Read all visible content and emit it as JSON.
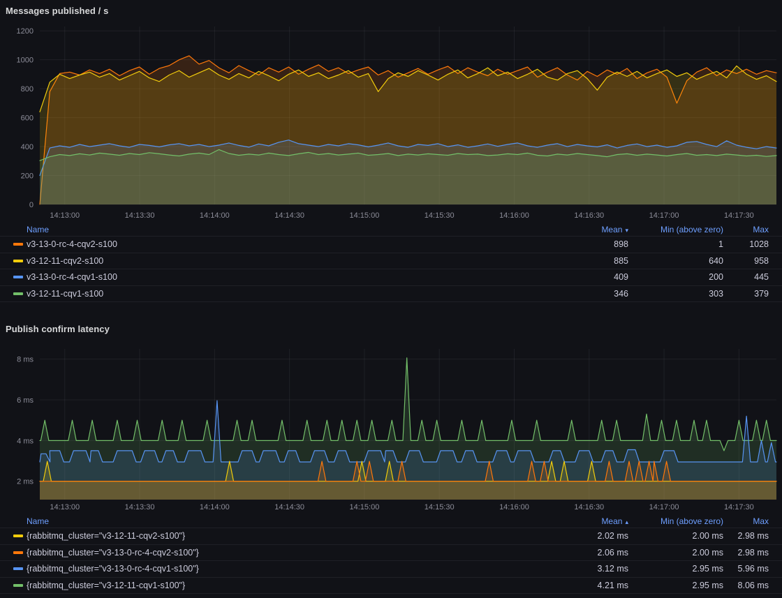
{
  "panels": [
    {
      "title": "Messages published / s",
      "legend": {
        "headers": {
          "name": "Name",
          "mean": "Mean",
          "min": "Min (above zero)",
          "max": "Max"
        },
        "sort_column": "Mean",
        "sort_direction": "descending",
        "sort_indicator": "▾",
        "rows": [
          {
            "name": "v3-13-0-rc-4-cqv2-s100",
            "color": "#FF780A",
            "mean": "898",
            "min": "1",
            "max": "1028"
          },
          {
            "name": "v3-12-11-cqv2-s100",
            "color": "#F2CC0C",
            "mean": "885",
            "min": "640",
            "max": "958"
          },
          {
            "name": "v3-13-0-rc-4-cqv1-s100",
            "color": "#5794F2",
            "mean": "409",
            "min": "200",
            "max": "445"
          },
          {
            "name": "v3-12-11-cqv1-s100",
            "color": "#73BF69",
            "mean": "346",
            "min": "303",
            "max": "379"
          }
        ]
      }
    },
    {
      "title": "Publish confirm latency",
      "legend": {
        "headers": {
          "name": "Name",
          "mean": "Mean",
          "min": "Min (above zero)",
          "max": "Max"
        },
        "sort_column": "Mean",
        "sort_direction": "ascending",
        "sort_indicator": "▴",
        "rows": [
          {
            "name": "{rabbitmq_cluster=\"v3-12-11-cqv2-s100\"}",
            "color": "#F2CC0C",
            "mean": "2.02 ms",
            "min": "2.00 ms",
            "max": "2.98 ms"
          },
          {
            "name": "{rabbitmq_cluster=\"v3-13-0-rc-4-cqv2-s100\"}",
            "color": "#FF780A",
            "mean": "2.06 ms",
            "min": "2.00 ms",
            "max": "2.98 ms"
          },
          {
            "name": "{rabbitmq_cluster=\"v3-13-0-rc-4-cqv1-s100\"}",
            "color": "#5794F2",
            "mean": "3.12 ms",
            "min": "2.95 ms",
            "max": "5.96 ms"
          },
          {
            "name": "{rabbitmq_cluster=\"v3-12-11-cqv1-s100\"}",
            "color": "#73BF69",
            "mean": "4.21 ms",
            "min": "2.95 ms",
            "max": "8.06 ms"
          }
        ]
      }
    }
  ],
  "chart_data": [
    {
      "type": "area-line",
      "title": "Messages published / s",
      "x_start": "14:12:50",
      "x_end": "14:17:45",
      "duration_s": 295,
      "grid": true,
      "legend_position": "bottom-table",
      "x_ticks": [
        {
          "t": 10,
          "label": "14:13:00"
        },
        {
          "t": 40,
          "label": "14:13:30"
        },
        {
          "t": 70,
          "label": "14:14:00"
        },
        {
          "t": 100,
          "label": "14:14:30"
        },
        {
          "t": 130,
          "label": "14:15:00"
        },
        {
          "t": 160,
          "label": "14:15:30"
        },
        {
          "t": 190,
          "label": "14:16:00"
        },
        {
          "t": 220,
          "label": "14:16:30"
        },
        {
          "t": 250,
          "label": "14:17:00"
        },
        {
          "t": 280,
          "label": "14:17:30"
        }
      ],
      "y_ticks": [
        {
          "v": 0,
          "label": "0"
        },
        {
          "v": 200,
          "label": "200"
        },
        {
          "v": 400,
          "label": "400"
        },
        {
          "v": 600,
          "label": "600"
        },
        {
          "v": 800,
          "label": "800"
        },
        {
          "v": 1000,
          "label": "1000"
        },
        {
          "v": 1200,
          "label": "1200"
        }
      ],
      "y_range": [
        0,
        1230
      ],
      "series": [
        {
          "name": "v3-13-0-rc-4-cqv2-s100",
          "color": "#FF780A",
          "stats": {
            "mean": 898,
            "min_above_zero": 1,
            "max": 1028
          },
          "values": [
            1,
            780,
            905,
            915,
            895,
            930,
            905,
            935,
            890,
            925,
            950,
            900,
            940,
            960,
            1000,
            1028,
            970,
            995,
            945,
            910,
            960,
            925,
            895,
            945,
            915,
            950,
            900,
            935,
            965,
            920,
            945,
            905,
            930,
            950,
            895,
            925,
            880,
            910,
            940,
            900,
            930,
            955,
            905,
            945,
            915,
            890,
            935,
            900,
            925,
            950,
            880,
            915,
            945,
            895,
            860,
            920,
            885,
            930,
            900,
            940,
            870,
            910,
            935,
            880,
            700,
            855,
            915,
            945,
            890,
            930,
            905,
            935,
            900,
            925,
            910
          ]
        },
        {
          "name": "v3-12-11-cqv2-s100",
          "color": "#F2CC0C",
          "stats": {
            "mean": 885,
            "min_above_zero": 640,
            "max": 958
          },
          "values": [
            640,
            845,
            900,
            870,
            895,
            915,
            880,
            905,
            860,
            890,
            920,
            875,
            850,
            895,
            925,
            880,
            910,
            940,
            895,
            865,
            905,
            875,
            920,
            890,
            855,
            900,
            930,
            885,
            910,
            870,
            895,
            925,
            880,
            905,
            780,
            870,
            910,
            885,
            925,
            895,
            860,
            900,
            930,
            875,
            905,
            945,
            890,
            915,
            870,
            900,
            935,
            880,
            860,
            905,
            925,
            870,
            790,
            880,
            915,
            885,
            920,
            875,
            905,
            930,
            885,
            910,
            865,
            895,
            920,
            875,
            958,
            900,
            865,
            890,
            850
          ]
        },
        {
          "name": "v3-13-0-rc-4-cqv1-s100",
          "color": "#5794F2",
          "stats": {
            "mean": 409,
            "min_above_zero": 200,
            "max": 445
          },
          "values": [
            200,
            390,
            405,
            395,
            415,
            400,
            410,
            420,
            405,
            395,
            415,
            408,
            398,
            412,
            420,
            405,
            415,
            400,
            410,
            425,
            408,
            396,
            418,
            405,
            430,
            445,
            420,
            410,
            400,
            415,
            405,
            420,
            412,
            398,
            410,
            425,
            405,
            395,
            415,
            408,
            420,
            400,
            412,
            395,
            405,
            418,
            402,
            415,
            425,
            405,
            395,
            410,
            420,
            400,
            415,
            405,
            398,
            412,
            390,
            408,
            418,
            400,
            410,
            395,
            405,
            430,
            435,
            415,
            400,
            440,
            410,
            395,
            385,
            400,
            390
          ]
        },
        {
          "name": "v3-12-11-cqv1-s100",
          "color": "#73BF69",
          "stats": {
            "mean": 346,
            "min_above_zero": 303,
            "max": 379
          },
          "values": [
            303,
            330,
            345,
            338,
            350,
            342,
            355,
            348,
            340,
            352,
            345,
            358,
            350,
            342,
            335,
            348,
            355,
            345,
            379,
            352,
            340,
            348,
            342,
            355,
            345,
            338,
            350,
            360,
            345,
            352,
            342,
            348,
            355,
            340,
            345,
            352,
            338,
            348,
            342,
            350,
            345,
            340,
            352,
            345,
            348,
            338,
            342,
            350,
            345,
            355,
            340,
            335,
            348,
            342,
            352,
            345,
            338,
            330,
            345,
            350,
            340,
            348,
            342,
            335,
            345,
            352,
            340,
            345,
            338,
            348,
            342,
            335,
            340,
            332,
            338
          ]
        }
      ]
    },
    {
      "type": "area-line",
      "title": "Publish confirm latency",
      "unit": "ms",
      "x_start": "14:12:50",
      "x_end": "14:17:45",
      "duration_s": 295,
      "grid": true,
      "legend_position": "bottom-table",
      "x_ticks": [
        {
          "t": 10,
          "label": "14:13:00"
        },
        {
          "t": 40,
          "label": "14:13:30"
        },
        {
          "t": 70,
          "label": "14:14:00"
        },
        {
          "t": 100,
          "label": "14:14:30"
        },
        {
          "t": 130,
          "label": "14:15:00"
        },
        {
          "t": 160,
          "label": "14:15:30"
        },
        {
          "t": 190,
          "label": "14:16:00"
        },
        {
          "t": 220,
          "label": "14:16:30"
        },
        {
          "t": 250,
          "label": "14:17:00"
        },
        {
          "t": 280,
          "label": "14:17:30"
        }
      ],
      "y_ticks": [
        {
          "v": 2,
          "label": "2 ms"
        },
        {
          "v": 4,
          "label": "4 ms"
        },
        {
          "v": 6,
          "label": "6 ms"
        },
        {
          "v": 8,
          "label": "8 ms"
        }
      ],
      "y_range": [
        1.1,
        8.5
      ],
      "series": [
        {
          "name": "{rabbitmq_cluster=\"v3-12-11-cqv1-s100\"}",
          "color": "#73BF69",
          "stats": {
            "mean_ms": 4.21,
            "min_above_zero_ms": 2.95,
            "max_ms": 8.06
          },
          "base": 4.0,
          "spikes": [
            [
              2,
              5.0
            ],
            [
              13,
              5.0
            ],
            [
              21,
              5.0
            ],
            [
              31,
              5.0
            ],
            [
              39,
              5.0
            ],
            [
              49,
              5.0
            ],
            [
              57,
              5.0
            ],
            [
              67,
              5.0
            ],
            [
              79,
              5.0
            ],
            [
              85,
              5.0
            ],
            [
              97,
              5.0
            ],
            [
              107,
              5.0
            ],
            [
              115,
              5.0
            ],
            [
              121,
              5.0
            ],
            [
              127,
              5.0
            ],
            [
              133,
              5.0
            ],
            [
              141,
              5.0
            ],
            [
              147,
              8.06
            ],
            [
              153,
              5.0
            ],
            [
              159,
              5.0
            ],
            [
              169,
              5.0
            ],
            [
              177,
              5.0
            ],
            [
              189,
              5.0
            ],
            [
              199,
              5.0
            ],
            [
              213,
              5.0
            ],
            [
              225,
              5.0
            ],
            [
              231,
              5.0
            ],
            [
              243,
              5.3
            ],
            [
              249,
              5.0
            ],
            [
              255,
              5.0
            ],
            [
              262,
              5.0
            ],
            [
              267,
              5.0
            ],
            [
              274,
              3.5
            ],
            [
              280,
              5.0
            ],
            [
              287,
              5.0
            ],
            [
              291,
              5.0
            ]
          ]
        },
        {
          "name": "{rabbitmq_cluster=\"v3-13-0-rc-4-cqv1-s100\"}",
          "color": "#5794F2",
          "stats": {
            "mean_ms": 3.12,
            "min_above_zero_ms": 2.95,
            "max_ms": 5.96
          },
          "base": 2.95,
          "spikes": [
            [
              1.5,
              3.35,
              2
            ],
            [
              6,
              3.5,
              4
            ],
            [
              16,
              3.5,
              5
            ],
            [
              22,
              3.5,
              3
            ],
            [
              34,
              3.5,
              6
            ],
            [
              44,
              3.5,
              4
            ],
            [
              52,
              3.5,
              3
            ],
            [
              62,
              3.5,
              5
            ],
            [
              71,
              5.96,
              0
            ],
            [
              83,
              3.5,
              4
            ],
            [
              92,
              3.5,
              5
            ],
            [
              101,
              3.5,
              3
            ],
            [
              112,
              3.5,
              4
            ],
            [
              121,
              3.5,
              3
            ],
            [
              134,
              3.5,
              5
            ],
            [
              140,
              3.5,
              3
            ],
            [
              150,
              3.5,
              4
            ],
            [
              163,
              3.5,
              5
            ],
            [
              172,
              3.5,
              3
            ],
            [
              185,
              3.5,
              4
            ],
            [
              194,
              3.5,
              5
            ],
            [
              207,
              3.5,
              3
            ],
            [
              218,
              3.5,
              4
            ],
            [
              228,
              3.5,
              3
            ],
            [
              237,
              3.55,
              3
            ],
            [
              252,
              3.5,
              4
            ],
            [
              283,
              5.2,
              0
            ],
            [
              289,
              4.0,
              0
            ],
            [
              293,
              3.9,
              0
            ]
          ]
        },
        {
          "name": "{rabbitmq_cluster=\"v3-12-11-cqv2-s100\"}",
          "color": "#F2CC0C",
          "stats": {
            "mean_ms": 2.02,
            "min_above_zero_ms": 2.0,
            "max_ms": 2.98
          },
          "base": 2.0,
          "spikes": [
            [
              3,
              2.98
            ],
            [
              76,
              2.98
            ],
            [
              129,
              2.98
            ],
            [
              140,
              2.98
            ],
            [
              205,
              2.98
            ],
            [
              210,
              2.98
            ],
            [
              221,
              2.98
            ]
          ]
        },
        {
          "name": "{rabbitmq_cluster=\"v3-13-0-rc-4-cqv2-s100\"}",
          "color": "#FF780A",
          "stats": {
            "mean_ms": 2.06,
            "min_above_zero_ms": 2.0,
            "max_ms": 2.98
          },
          "base": 2.0,
          "spikes": [
            [
              113,
              2.98
            ],
            [
              127,
              2.98
            ],
            [
              132,
              2.98
            ],
            [
              145,
              2.98
            ],
            [
              180,
              2.98
            ],
            [
              197,
              2.98
            ],
            [
              202,
              2.98
            ],
            [
              228,
              2.98
            ],
            [
              236,
              2.98
            ],
            [
              240,
              2.98
            ],
            [
              244,
              2.98
            ],
            [
              246,
              2.98
            ],
            [
              251,
              2.98
            ]
          ]
        }
      ]
    }
  ]
}
